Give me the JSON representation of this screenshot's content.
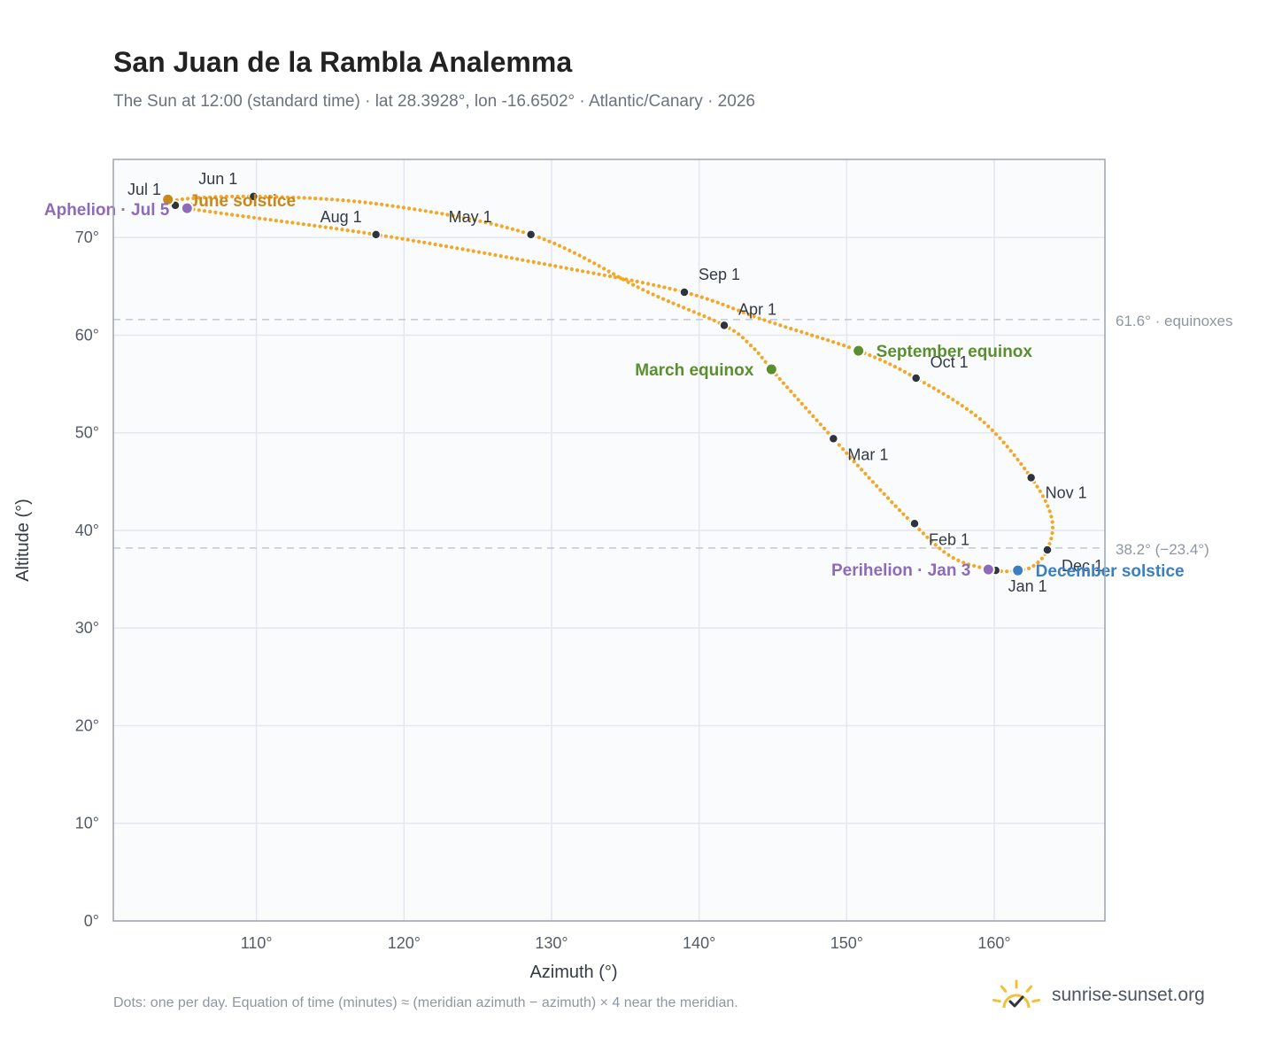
{
  "header": {
    "title": "San Juan de la Rambla Analemma",
    "subtitle": "The Sun at 12:00 (standard time) · lat 28.3928°, lon -16.6502° · Atlantic/Canary · 2026"
  },
  "footer": {
    "note": "Dots: one per day. Equation of time (minutes) ≈ (meridian azimuth − azimuth) × 4 near the meridian.",
    "brand": "sunrise-sunset.org"
  },
  "colors": {
    "curve": "#f5a623",
    "month_marker": "#2d3440",
    "equinox": "#5b8f2e",
    "solstice_june": "#c8891a",
    "solstice_december": "#3b7ec2",
    "apsis": "#8e6bb8",
    "grid": "#e3e8ee",
    "plot_bg": "#f9fbfd",
    "axis_frame": "#9aa5b3",
    "reference_line": "#c4c9d0",
    "brand_sun": "#f2c230"
  },
  "chart_data": {
    "type": "scatter",
    "xlabel": "Azimuth (°)",
    "ylabel": "Altitude (°)",
    "xlim": [
      100.3,
      167.5
    ],
    "ylim": [
      0,
      78
    ],
    "xticks": [
      110,
      120,
      130,
      140,
      150,
      160
    ],
    "yticks": [
      0,
      10,
      20,
      30,
      40,
      50,
      60,
      70
    ],
    "tick_suffix": "°",
    "grid": true,
    "series": [
      {
        "points": [
          [
            161.6,
            35.9
          ],
          [
            160.1,
            35.9
          ],
          [
            157.2,
            37.2
          ],
          [
            154.5,
            40.7
          ],
          [
            152.0,
            44.6
          ],
          [
            149.1,
            49.4
          ],
          [
            146.0,
            54.6
          ],
          [
            144.9,
            56.5
          ],
          [
            143.6,
            58.8
          ],
          [
            141.7,
            61.0
          ],
          [
            136.4,
            64.5
          ],
          [
            128.6,
            70.3
          ],
          [
            118.4,
            73.4
          ],
          [
            109.8,
            74.2
          ],
          [
            104.4,
            73.8
          ],
          [
            105.3,
            73.0
          ],
          [
            118.1,
            70.3
          ],
          [
            130.5,
            67.0
          ],
          [
            139.0,
            64.4
          ],
          [
            144.5,
            61.5
          ],
          [
            150.8,
            58.4
          ],
          [
            154.7,
            55.6
          ],
          [
            159.2,
            51.2
          ],
          [
            162.5,
            45.4
          ],
          [
            163.9,
            41.2
          ],
          [
            163.6,
            38.0
          ],
          [
            162.6,
            36.3
          ],
          [
            161.6,
            35.9
          ]
        ]
      }
    ],
    "month_markers": [
      {
        "label": "Jan 1",
        "az": 160.1,
        "alt": 35.9
      },
      {
        "label": "Feb 1",
        "az": 154.6,
        "alt": 40.7
      },
      {
        "label": "Mar 1",
        "az": 149.1,
        "alt": 49.4
      },
      {
        "label": "Apr 1",
        "az": 141.7,
        "alt": 61.0
      },
      {
        "label": "May 1",
        "az": 128.6,
        "alt": 70.3
      },
      {
        "label": "Jun 1",
        "az": 109.8,
        "alt": 74.2
      },
      {
        "label": "Jul 1",
        "az": 104.5,
        "alt": 73.3
      },
      {
        "label": "Aug 1",
        "az": 118.1,
        "alt": 70.3
      },
      {
        "label": "Sep 1",
        "az": 139.0,
        "alt": 64.4
      },
      {
        "label": "Oct 1",
        "az": 154.7,
        "alt": 55.6
      },
      {
        "label": "Nov 1",
        "az": 162.5,
        "alt": 45.4
      },
      {
        "label": "Dec 1",
        "az": 163.6,
        "alt": 38.0
      }
    ],
    "events": [
      {
        "label": "March equinox",
        "az": 144.9,
        "alt": 56.5,
        "kind": "equinox"
      },
      {
        "label": "September equinox",
        "az": 150.8,
        "alt": 58.4,
        "kind": "equinox"
      },
      {
        "label": "June solstice",
        "az": 104.0,
        "alt": 73.9,
        "kind": "solstice_june"
      },
      {
        "label": "December solstice",
        "az": 161.6,
        "alt": 35.9,
        "kind": "solstice_december"
      },
      {
        "label": "Aphelion · Jul 5",
        "az": 105.3,
        "alt": 73.0,
        "kind": "apsis"
      },
      {
        "label": "Perihelion · Jan 3",
        "az": 159.6,
        "alt": 36.0,
        "kind": "apsis"
      }
    ],
    "reference_lines": [
      {
        "label": "61.6° · equinoxes",
        "alt": 61.6
      },
      {
        "label": "38.2° (−23.4°)",
        "alt": 38.2
      }
    ]
  }
}
